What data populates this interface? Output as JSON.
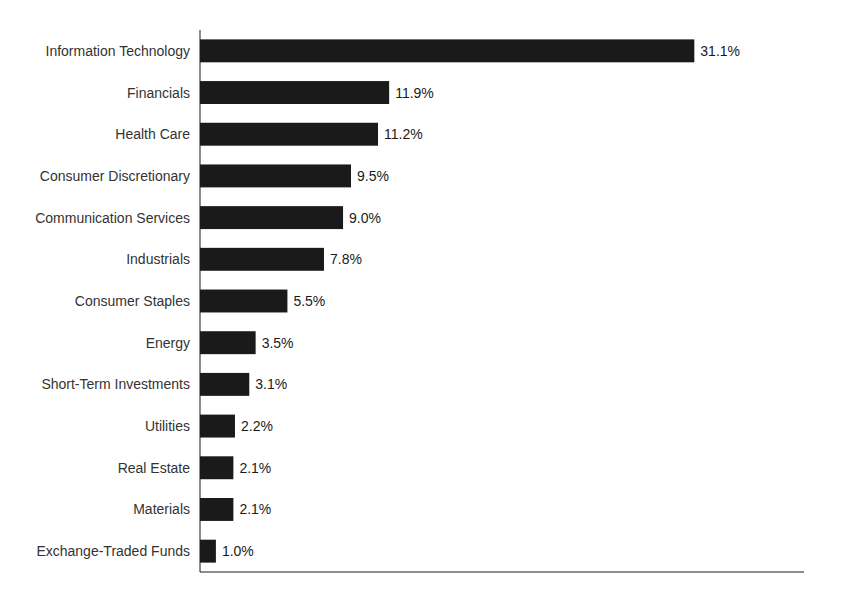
{
  "chart_data": {
    "type": "bar",
    "orientation": "horizontal",
    "categories": [
      "Exchange-Traded Funds",
      "Materials",
      "Real Estate",
      "Utilities",
      "Short-Term Investments",
      "Energy",
      "Consumer Staples",
      "Industrials",
      "Communication Services",
      "Consumer Discretionary",
      "Health Care",
      "Financials",
      "Information Technology"
    ],
    "values": [
      1.0,
      2.1,
      2.1,
      2.2,
      3.1,
      3.5,
      5.5,
      7.8,
      9.0,
      9.5,
      11.2,
      11.9,
      31.1
    ],
    "value_labels": [
      "1.0%",
      "2.1%",
      "2.1%",
      "2.2%",
      "3.1%",
      "3.5%",
      "5.5%",
      "7.8%",
      "9.0%",
      "9.5%",
      "11.2%",
      "11.9%",
      "31.1%"
    ],
    "color": "#1a1a1a",
    "xlim": [
      0,
      38
    ],
    "grid": false,
    "data_labels": true,
    "tick_labels": "y"
  }
}
